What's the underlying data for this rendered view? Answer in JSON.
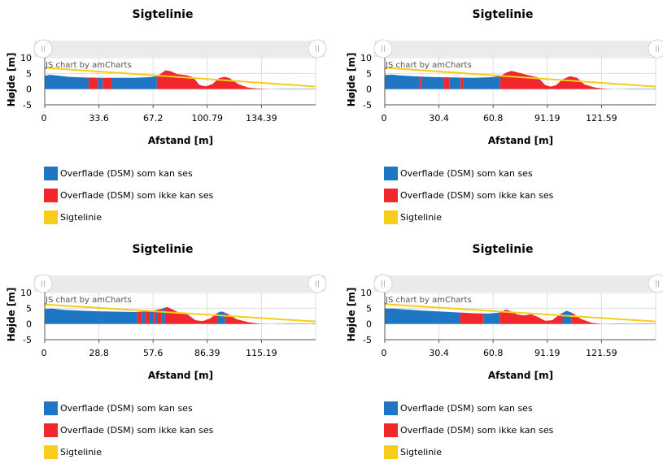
{
  "colors": {
    "visible": "#1f77c4",
    "hidden": "#f0282d",
    "sightline": "#f7cc1a",
    "axis": "#555555",
    "grid": "#dddddd",
    "scroll_bg": "#ebebeb"
  },
  "legend": [
    {
      "label": "Overflade (DSM) som kan ses",
      "color_key": "visible"
    },
    {
      "label": "Overflade (DSM) som ikke kan ses",
      "color_key": "hidden"
    },
    {
      "label": "Sigtelinie",
      "color_key": "sightline"
    }
  ],
  "chart_data": [
    {
      "type": "area",
      "title": "Sigtelinie",
      "xlabel": "Afstand [m]",
      "ylabel": "Højde [m]",
      "credit": "JS chart by amCharts",
      "xlim": [
        0,
        168
      ],
      "ylim": [
        -5,
        10
      ],
      "x_ticks": [
        "0",
        "33.6",
        "67.2",
        "100.79",
        "134.39"
      ],
      "y_ticks": [
        "10",
        "5",
        "0",
        "-5"
      ],
      "sightline": [
        [
          0,
          6.8
        ],
        [
          168,
          0.8
        ]
      ],
      "terrain": [
        [
          0,
          4.2
        ],
        [
          3,
          4.6
        ],
        [
          8,
          4.3
        ],
        [
          15,
          3.9
        ],
        [
          25,
          3.7
        ],
        [
          35,
          3.6
        ],
        [
          45,
          3.6
        ],
        [
          55,
          3.6
        ],
        [
          65,
          3.8
        ],
        [
          70,
          4.2
        ],
        [
          73,
          5.3
        ],
        [
          75,
          6.0
        ],
        [
          78,
          5.7
        ],
        [
          82,
          4.8
        ],
        [
          88,
          4.4
        ],
        [
          92,
          3.8
        ],
        [
          96,
          1.3
        ],
        [
          100,
          0.9
        ],
        [
          104,
          1.6
        ],
        [
          108,
          3.5
        ],
        [
          112,
          3.9
        ],
        [
          115,
          3.4
        ],
        [
          120,
          1.6
        ],
        [
          126,
          0.5
        ],
        [
          132,
          0.2
        ],
        [
          140,
          0
        ],
        [
          150,
          -0.1
        ],
        [
          168,
          -0.1
        ]
      ],
      "hidden_ranges": [
        [
          27.5,
          33.2
        ],
        [
          36.2,
          41.8
        ],
        [
          69.7,
          140
        ]
      ]
    },
    {
      "type": "area",
      "title": "Sigtelinie",
      "xlabel": "Afstand [m]",
      "ylabel": "Højde [m]",
      "credit": "JS chart by amCharts",
      "xlim": [
        0,
        152
      ],
      "ylim": [
        -5,
        10
      ],
      "x_ticks": [
        "0",
        "30.4",
        "60.8",
        "91.19",
        "121.59"
      ],
      "y_ticks": [
        "10",
        "5",
        "0",
        "-5"
      ],
      "sightline": [
        [
          0,
          6.8
        ],
        [
          152,
          0.8
        ]
      ],
      "terrain": [
        [
          0,
          4.5
        ],
        [
          4,
          4.6
        ],
        [
          10,
          4.3
        ],
        [
          20,
          4.0
        ],
        [
          30,
          3.8
        ],
        [
          40,
          3.7
        ],
        [
          50,
          3.6
        ],
        [
          60,
          3.8
        ],
        [
          65,
          4.2
        ],
        [
          68,
          5.2
        ],
        [
          71,
          5.8
        ],
        [
          74,
          5.4
        ],
        [
          80,
          4.5
        ],
        [
          86,
          3.7
        ],
        [
          90,
          1.3
        ],
        [
          93,
          0.8
        ],
        [
          96,
          1.2
        ],
        [
          100,
          3.2
        ],
        [
          104,
          4.1
        ],
        [
          108,
          3.6
        ],
        [
          112,
          1.5
        ],
        [
          118,
          0.5
        ],
        [
          124,
          0.1
        ],
        [
          130,
          0
        ],
        [
          140,
          -0.1
        ],
        [
          152,
          -0.1
        ]
      ],
      "hidden_ranges": [
        [
          19.8,
          21.0
        ],
        [
          33.3,
          36.4
        ],
        [
          42.7,
          44.2
        ],
        [
          65,
          126
        ]
      ]
    },
    {
      "type": "area",
      "title": "Sigtelinie",
      "xlabel": "Afstand [m]",
      "ylabel": "Højde [m]",
      "credit": "JS chart by amCharts",
      "xlim": [
        0,
        144
      ],
      "ylim": [
        -5,
        10
      ],
      "x_ticks": [
        "0",
        "28.8",
        "57.6",
        "86.39",
        "115.19"
      ],
      "y_ticks": [
        "10",
        "5",
        "0",
        "-5"
      ],
      "sightline": [
        [
          0,
          6.2
        ],
        [
          144,
          0.8
        ]
      ],
      "terrain": [
        [
          0,
          4.8
        ],
        [
          4,
          4.9
        ],
        [
          10,
          4.5
        ],
        [
          20,
          4.2
        ],
        [
          30,
          4.0
        ],
        [
          40,
          3.9
        ],
        [
          48,
          3.8
        ],
        [
          54,
          4.0
        ],
        [
          58,
          4.3
        ],
        [
          62,
          4.8
        ],
        [
          65,
          5.4
        ],
        [
          68,
          4.6
        ],
        [
          72,
          3.4
        ],
        [
          76,
          3.0
        ],
        [
          80,
          1.2
        ],
        [
          84,
          0.9
        ],
        [
          88,
          1.8
        ],
        [
          92,
          3.6
        ],
        [
          94,
          4.0
        ],
        [
          97,
          3.3
        ],
        [
          102,
          1.5
        ],
        [
          108,
          0.6
        ],
        [
          114,
          0.1
        ],
        [
          120,
          0
        ],
        [
          130,
          -0.1
        ],
        [
          144,
          -0.1
        ]
      ],
      "hidden_ranges": [
        [
          49.3,
          51.7
        ],
        [
          53.4,
          55.8
        ],
        [
          57.6,
          58.8
        ],
        [
          60.0,
          62.4
        ],
        [
          64.0,
          92.0
        ],
        [
          96.0,
          118
        ]
      ]
    },
    {
      "type": "area",
      "title": "Sigtelinie",
      "xlabel": "Afstand [m]",
      "ylabel": "Højde [m]",
      "credit": "JS chart by amCharts",
      "xlim": [
        0,
        152
      ],
      "ylim": [
        -5,
        10
      ],
      "x_ticks": [
        "0",
        "30.4",
        "60.8",
        "91.19",
        "121.59"
      ],
      "y_ticks": [
        "10",
        "5",
        "0",
        "-5"
      ],
      "sightline": [
        [
          0,
          6.3
        ],
        [
          152,
          0.8
        ]
      ],
      "terrain": [
        [
          0,
          4.9
        ],
        [
          5,
          4.9
        ],
        [
          12,
          4.6
        ],
        [
          20,
          4.3
        ],
        [
          30,
          4.0
        ],
        [
          40,
          3.7
        ],
        [
          50,
          3.4
        ],
        [
          58,
          3.3
        ],
        [
          64,
          3.6
        ],
        [
          68,
          4.6
        ],
        [
          71,
          4.0
        ],
        [
          74,
          3.1
        ],
        [
          78,
          2.7
        ],
        [
          82,
          3.1
        ],
        [
          86,
          2.2
        ],
        [
          90,
          1.0
        ],
        [
          94,
          1.2
        ],
        [
          98,
          3.0
        ],
        [
          102,
          4.2
        ],
        [
          105,
          3.6
        ],
        [
          110,
          1.6
        ],
        [
          116,
          0.4
        ],
        [
          122,
          0
        ],
        [
          130,
          -0.1
        ],
        [
          152,
          -0.1
        ]
      ],
      "hidden_ranges": [
        [
          42.5,
          55.4
        ],
        [
          64.7,
          100.0
        ],
        [
          105.0,
          128
        ]
      ]
    }
  ]
}
